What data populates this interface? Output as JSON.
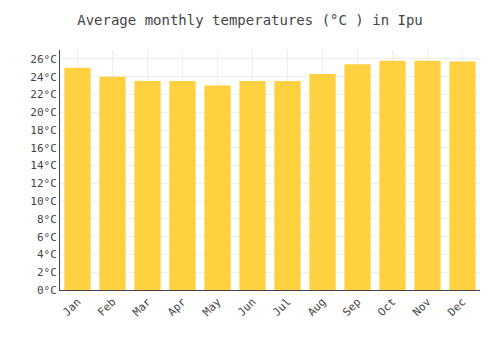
{
  "chart_data": {
    "type": "bar",
    "title": "Average monthly temperatures (°C ) in Ipu",
    "categories": [
      "Jan",
      "Feb",
      "Mar",
      "Apr",
      "May",
      "Jun",
      "Jul",
      "Aug",
      "Sep",
      "Oct",
      "Nov",
      "Dec"
    ],
    "values": [
      25.0,
      24.0,
      23.5,
      23.5,
      23.0,
      23.5,
      23.5,
      24.3,
      25.4,
      25.8,
      25.8,
      25.7
    ],
    "color": "#FFD040",
    "ylim": [
      0,
      27
    ],
    "yticks": [
      {
        "value": 0,
        "label": "0°C"
      },
      {
        "value": 2,
        "label": "2°C"
      },
      {
        "value": 4,
        "label": "4°C"
      },
      {
        "value": 6,
        "label": "6°C"
      },
      {
        "value": 8,
        "label": "8°C"
      },
      {
        "value": 10,
        "label": "10°C"
      },
      {
        "value": 12,
        "label": "12°C"
      },
      {
        "value": 14,
        "label": "14°C"
      },
      {
        "value": 16,
        "label": "16°C"
      },
      {
        "value": 18,
        "label": "18°C"
      },
      {
        "value": 20,
        "label": "20°C"
      },
      {
        "value": 22,
        "label": "22°C"
      },
      {
        "value": 24,
        "label": "24°C"
      },
      {
        "value": 26,
        "label": "26°C"
      }
    ],
    "grid": true
  }
}
